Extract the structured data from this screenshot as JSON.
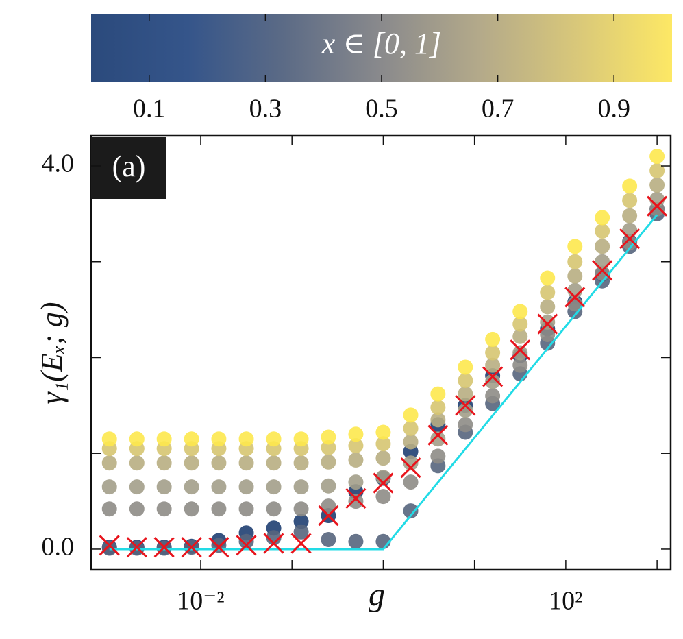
{
  "chart_data": {
    "type": "scatter",
    "xscale": "log",
    "xlim": [
      0.00063,
      1410
    ],
    "ylim": [
      -0.215,
      4.315
    ],
    "xticks": [
      {
        "value": 0.01,
        "label": "10⁻²"
      },
      {
        "value": 0.1,
        "label": null
      },
      {
        "value": 1,
        "label": null
      },
      {
        "value": 10,
        "label": null
      },
      {
        "value": 100,
        "label": "10²"
      },
      {
        "value": 1000,
        "label": null
      }
    ],
    "yticks": [
      {
        "value": 0,
        "label": "0.0"
      },
      {
        "value": 1,
        "label": null
      },
      {
        "value": 2,
        "label": null
      },
      {
        "value": 3,
        "label": null
      },
      {
        "value": 4,
        "label": "4.0"
      }
    ],
    "x_label": "g",
    "y_label": "γ₁(Eₓ; g)",
    "annotation": "(a)",
    "colorbar": {
      "label": "x ∈ [0, 1]",
      "lim": [
        0,
        1
      ],
      "ticks": [
        0.1,
        0.3,
        0.5,
        0.7,
        0.9
      ],
      "colors": [
        "#2b4a7c",
        "#35558a",
        "#5c6b86",
        "#8a8a8c",
        "#b3a98a",
        "#d8c77a",
        "#fde865"
      ]
    },
    "x": [
      0.001,
      0.002,
      0.00398,
      0.00794,
      0.0158,
      0.0316,
      0.0631,
      0.126,
      0.251,
      0.501,
      1,
      2,
      3.98,
      7.94,
      15.8,
      31.6,
      63.1,
      126,
      251,
      501,
      1000
    ],
    "series": [
      {
        "kind": "dots",
        "color": "#1f3f72",
        "values": [
          0.02,
          0.02,
          0.02,
          0.03,
          0.09,
          0.17,
          0.22,
          0.29,
          0.35,
          0.6,
          0.74,
          1.02,
          1.3,
          1.5,
          1.81,
          2.02,
          2.3,
          2.58,
          2.87,
          3.21,
          3.55
        ]
      },
      {
        "kind": "dots",
        "color": "#56657d",
        "values": [
          0.01,
          0.01,
          0.01,
          0.02,
          0.04,
          0.08,
          0.12,
          0.18,
          0.1,
          0.08,
          0.08,
          0.4,
          0.87,
          1.22,
          1.52,
          1.83,
          2.15,
          2.48,
          2.8,
          3.16,
          3.5
        ]
      },
      {
        "kind": "dots",
        "color": "#8e8c86",
        "values": [
          0.42,
          0.42,
          0.42,
          0.42,
          0.42,
          0.42,
          0.42,
          0.42,
          0.45,
          0.5,
          0.55,
          0.7,
          0.97,
          1.3,
          1.6,
          1.92,
          2.24,
          2.56,
          2.88,
          3.2,
          3.55
        ]
      },
      {
        "kind": "dots",
        "color": "#a39e8a",
        "values": [
          0.65,
          0.65,
          0.65,
          0.65,
          0.65,
          0.65,
          0.65,
          0.65,
          0.66,
          0.7,
          0.75,
          0.9,
          1.15,
          1.45,
          1.75,
          2.05,
          2.37,
          2.7,
          3.0,
          3.33,
          3.65
        ]
      },
      {
        "kind": "dots",
        "color": "#b8ae82",
        "values": [
          0.9,
          0.9,
          0.9,
          0.9,
          0.9,
          0.9,
          0.9,
          0.9,
          0.91,
          0.93,
          0.95,
          1.12,
          1.35,
          1.62,
          1.92,
          2.22,
          2.53,
          2.85,
          3.16,
          3.48,
          3.8
        ]
      },
      {
        "kind": "dots",
        "color": "#d6c571",
        "values": [
          1.05,
          1.05,
          1.05,
          1.05,
          1.05,
          1.05,
          1.05,
          1.05,
          1.06,
          1.08,
          1.1,
          1.26,
          1.48,
          1.76,
          2.05,
          2.35,
          2.68,
          3.0,
          3.32,
          3.64,
          3.95
        ]
      },
      {
        "kind": "dots",
        "color": "#fde84e",
        "values": [
          1.15,
          1.15,
          1.15,
          1.15,
          1.15,
          1.15,
          1.15,
          1.15,
          1.17,
          1.2,
          1.22,
          1.4,
          1.62,
          1.9,
          2.19,
          2.48,
          2.83,
          3.16,
          3.46,
          3.79,
          4.1
        ]
      },
      {
        "kind": "line",
        "color": "#22dbe6",
        "x": [
          0.001,
          1,
          1000
        ],
        "values": [
          0,
          0,
          3.49
        ]
      },
      {
        "kind": "cross",
        "color": "#e8141c",
        "values": [
          0.04,
          0.02,
          0.02,
          0.02,
          0.02,
          0.04,
          0.06,
          0.06,
          0.35,
          0.53,
          0.69,
          0.85,
          1.19,
          1.5,
          1.8,
          2.08,
          2.35,
          2.63,
          2.91,
          3.24,
          3.58
        ]
      }
    ]
  }
}
